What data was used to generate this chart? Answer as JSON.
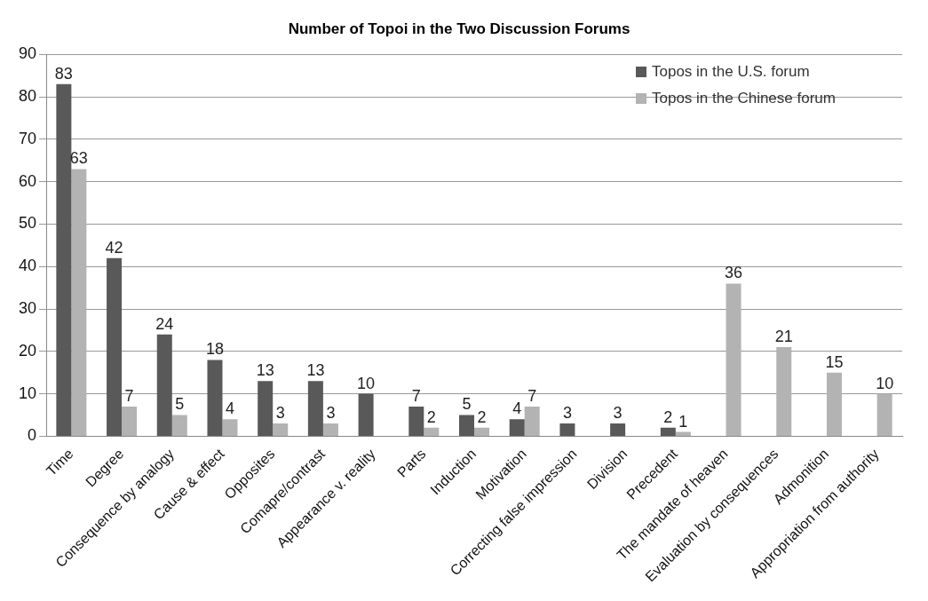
{
  "chart_data": {
    "type": "bar",
    "title": "Number of Topoi in the Two Discussion Forums",
    "categories": [
      "Time",
      "Degree",
      "Consequence by analogy",
      "Cause & effect",
      "Opposites",
      "Comapre/contrast",
      "Appearance v. reality",
      "Parts",
      "Induction",
      "Motivation",
      "Correcting false impression",
      "Division",
      "Precedent",
      "The mandate of heaven",
      "Evaluation by consequences",
      "Admonition",
      "Appropriation from authority"
    ],
    "series": [
      {
        "name": "Topos in the U.S. forum",
        "color": "#595959",
        "values": [
          83,
          42,
          24,
          18,
          13,
          13,
          10,
          7,
          5,
          4,
          3,
          3,
          2,
          null,
          null,
          null,
          null
        ]
      },
      {
        "name": "Topos in the Chinese forum",
        "color": "#b3b3b3",
        "values": [
          63,
          7,
          5,
          4,
          3,
          3,
          null,
          2,
          2,
          7,
          null,
          null,
          1,
          36,
          21,
          15,
          10
        ]
      }
    ],
    "ylim": [
      0,
      90
    ],
    "yticks": [
      0,
      10,
      20,
      30,
      40,
      50,
      60,
      70,
      80,
      90
    ],
    "grid": "y",
    "legend": "top right",
    "data_labels": true
  }
}
